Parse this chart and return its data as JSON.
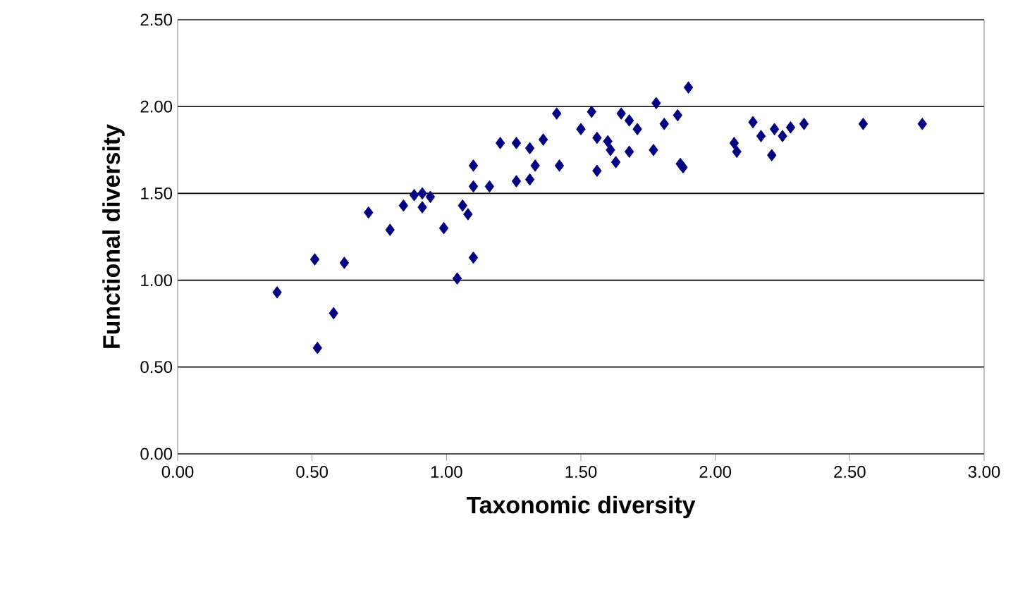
{
  "chart_data": {
    "type": "scatter",
    "xlabel": "Taxonomic diversity",
    "ylabel": "Functional diversity",
    "marker": "diamond",
    "grid": "y",
    "color": "#000080",
    "xlim": [
      0,
      3
    ],
    "ylim": [
      0,
      2.5
    ],
    "xticks": [
      {
        "value": 0,
        "label": "0.00"
      },
      {
        "value": 0.5,
        "label": "0.50"
      },
      {
        "value": 1,
        "label": "1.00"
      },
      {
        "value": 1.5,
        "label": "1.50"
      },
      {
        "value": 2,
        "label": "2.00"
      },
      {
        "value": 2.5,
        "label": "2.50"
      },
      {
        "value": 3,
        "label": "3.00"
      }
    ],
    "yticks": [
      {
        "value": 0,
        "label": "0.00"
      },
      {
        "value": 0.5,
        "label": "0.50"
      },
      {
        "value": 1,
        "label": "1.00"
      },
      {
        "value": 1.5,
        "label": "1.50"
      },
      {
        "value": 2,
        "label": "2.00"
      },
      {
        "value": 2.5,
        "label": "2.50"
      }
    ],
    "x": [
      0.37,
      0.52,
      0.58,
      0.51,
      0.62,
      0.71,
      0.79,
      0.84,
      0.88,
      0.91,
      0.91,
      0.94,
      0.99,
      1.04,
      1.1,
      1.06,
      1.08,
      1.1,
      1.1,
      1.16,
      1.2,
      1.26,
      1.26,
      1.31,
      1.31,
      1.33,
      1.36,
      1.41,
      1.42,
      1.5,
      1.54,
      1.56,
      1.56,
      1.6,
      1.61,
      1.63,
      1.65,
      1.68,
      1.71,
      1.68,
      1.78,
      1.77,
      1.81,
      1.86,
      1.9,
      1.88,
      1.87,
      2.07,
      2.08,
      2.14,
      2.17,
      2.21,
      2.22,
      2.25,
      2.28,
      2.33,
      2.55,
      2.77
    ],
    "values": [
      0.93,
      0.61,
      0.81,
      1.12,
      1.1,
      1.39,
      1.29,
      1.43,
      1.49,
      1.5,
      1.42,
      1.48,
      1.3,
      1.01,
      1.13,
      1.43,
      1.38,
      1.66,
      1.54,
      1.54,
      1.79,
      1.57,
      1.79,
      1.76,
      1.58,
      1.66,
      1.81,
      1.96,
      1.66,
      1.87,
      1.97,
      1.82,
      1.63,
      1.8,
      1.75,
      1.68,
      1.96,
      1.92,
      1.87,
      1.74,
      2.02,
      1.75,
      1.9,
      1.95,
      2.11,
      1.65,
      1.67,
      1.79,
      1.74,
      1.91,
      1.83,
      1.72,
      1.87,
      1.83,
      1.88,
      1.9,
      1.9,
      1.9
    ]
  }
}
